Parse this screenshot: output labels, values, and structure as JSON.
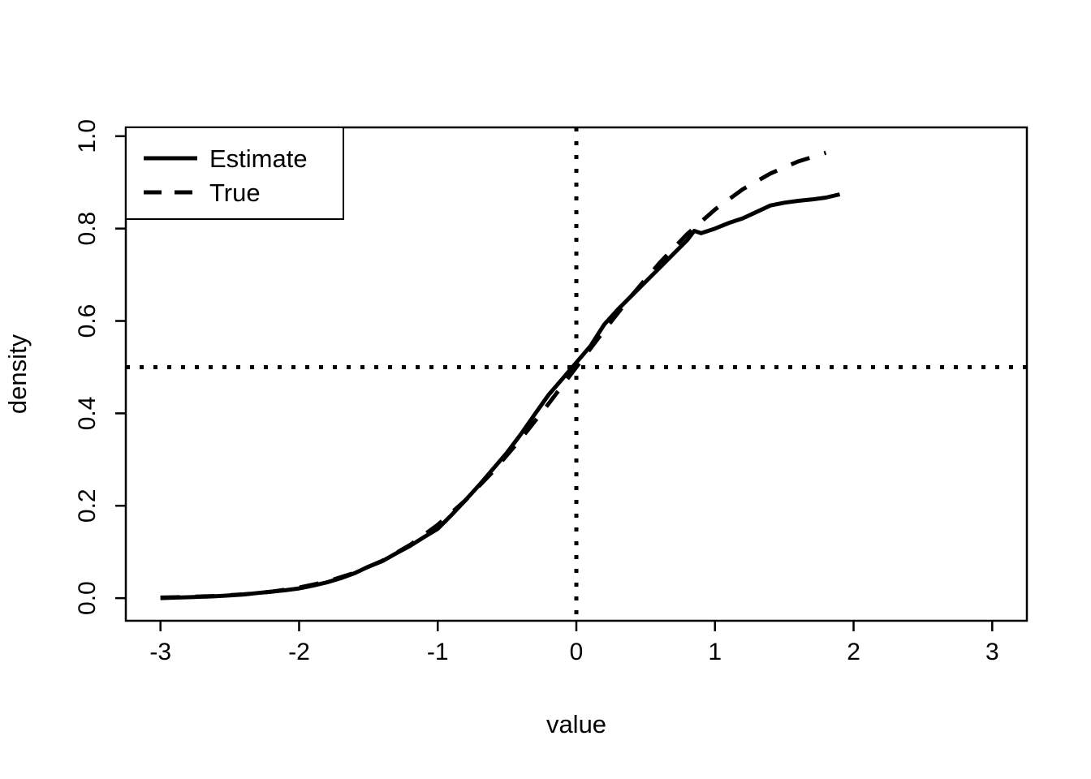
{
  "figure": {
    "background": "#ffffff",
    "foreground": "#000000"
  },
  "chart_data": {
    "type": "line",
    "title": "",
    "xlabel": "value",
    "ylabel": "density",
    "xlim": [
      -3.25,
      3.25
    ],
    "ylim": [
      -0.049,
      1.019
    ],
    "x_ticks": [
      -3,
      -2,
      -1,
      0,
      1,
      2,
      3
    ],
    "x_tick_labels": [
      "-3",
      "-2",
      "-1",
      "0",
      "1",
      "2",
      "3"
    ],
    "y_ticks": [
      0.0,
      0.2,
      0.4,
      0.6,
      0.8,
      1.0
    ],
    "y_tick_labels": [
      "0.0",
      "0.2",
      "0.4",
      "0.6",
      "0.8",
      "1.0"
    ],
    "grid": false,
    "legend": {
      "position": "top-left",
      "entries": [
        {
          "label": "Estimate",
          "line_style": "solid"
        },
        {
          "label": "True",
          "line_style": "dashed"
        }
      ]
    },
    "reference_lines": [
      {
        "orientation": "vertical",
        "value": 0,
        "style": "dotted"
      },
      {
        "orientation": "horizontal",
        "value": 0.5,
        "style": "dotted"
      }
    ],
    "series": [
      {
        "name": "Estimate",
        "style": "solid",
        "color": "#000000",
        "x": [
          -3.0,
          -2.9,
          -2.8,
          -2.7,
          -2.6,
          -2.5,
          -2.4,
          -2.3,
          -2.2,
          -2.1,
          -2.0,
          -1.9,
          -1.8,
          -1.7,
          -1.6,
          -1.5,
          -1.4,
          -1.3,
          -1.2,
          -1.1,
          -1.0,
          -0.9,
          -0.8,
          -0.7,
          -0.6,
          -0.5,
          -0.4,
          -0.3,
          -0.2,
          -0.1,
          0.0,
          0.1,
          0.2,
          0.3,
          0.4,
          0.5,
          0.6,
          0.7,
          0.8,
          0.85,
          0.9,
          1.0,
          1.1,
          1.2,
          1.3,
          1.4,
          1.5,
          1.6,
          1.7,
          1.8,
          1.9
        ],
        "y": [
          0.0,
          0.001,
          0.002,
          0.003,
          0.004,
          0.006,
          0.008,
          0.011,
          0.014,
          0.017,
          0.021,
          0.027,
          0.034,
          0.043,
          0.054,
          0.068,
          0.08,
          0.097,
          0.113,
          0.132,
          0.15,
          0.18,
          0.212,
          0.245,
          0.28,
          0.315,
          0.355,
          0.398,
          0.44,
          0.475,
          0.51,
          0.545,
          0.592,
          0.625,
          0.655,
          0.685,
          0.715,
          0.745,
          0.775,
          0.795,
          0.79,
          0.8,
          0.812,
          0.822,
          0.836,
          0.85,
          0.856,
          0.86,
          0.863,
          0.867,
          0.874
        ]
      },
      {
        "name": "True",
        "style": "dashed",
        "color": "#000000",
        "x": [
          -3.0,
          -2.8,
          -2.6,
          -2.4,
          -2.2,
          -2.0,
          -1.8,
          -1.6,
          -1.4,
          -1.2,
          -1.0,
          -0.8,
          -0.6,
          -0.4,
          -0.2,
          0.0,
          0.2,
          0.4,
          0.6,
          0.8,
          1.0,
          1.2,
          1.4,
          1.6,
          1.8
        ],
        "y": [
          0.0013,
          0.0026,
          0.0047,
          0.0082,
          0.0139,
          0.0228,
          0.0359,
          0.0548,
          0.0808,
          0.1151,
          0.1587,
          0.2119,
          0.2743,
          0.3446,
          0.4207,
          0.5,
          0.5793,
          0.6554,
          0.7257,
          0.7881,
          0.8413,
          0.8849,
          0.9192,
          0.9452,
          0.9641
        ]
      }
    ]
  }
}
